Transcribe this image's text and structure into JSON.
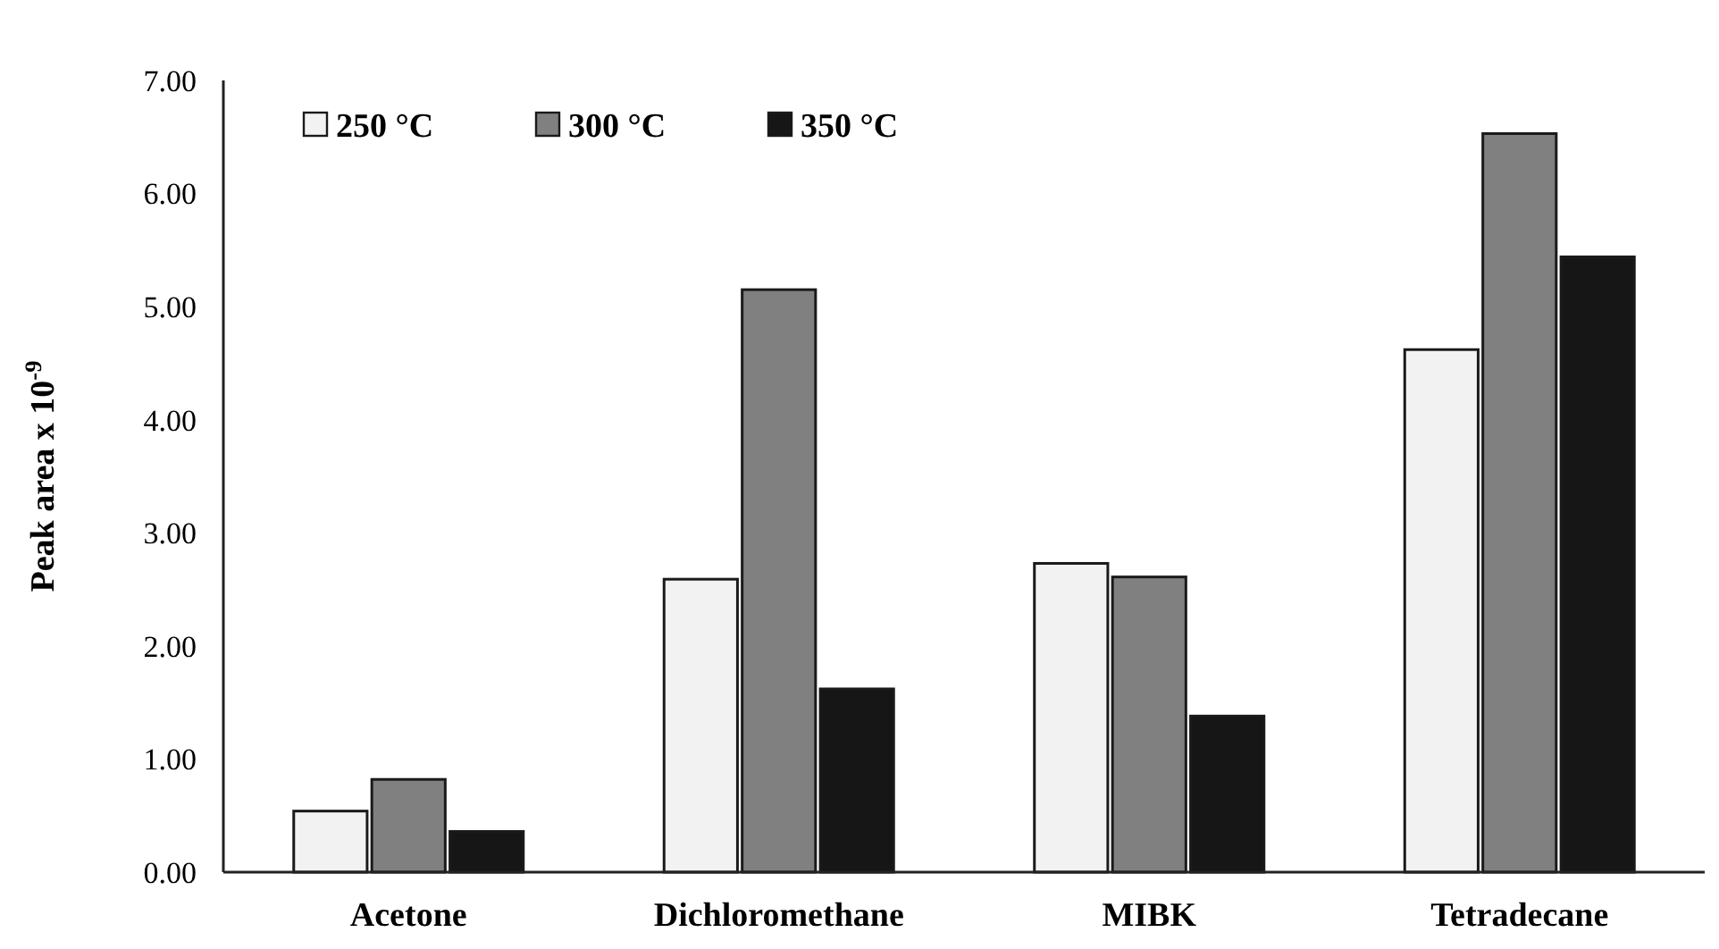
{
  "chart_data": {
    "type": "bar",
    "ylabel": "Peak area x 10$^{-9}$",
    "categories": [
      "Acetone",
      "Dichloromethane",
      "MIBK",
      "Tetradecane"
    ],
    "series": [
      {
        "name": "250 °C",
        "color": "#f2f2f2",
        "values": [
          0.54,
          2.59,
          2.73,
          4.62
        ]
      },
      {
        "name": "300 °C",
        "color": "#808080",
        "values": [
          0.82,
          5.15,
          2.61,
          6.53
        ]
      },
      {
        "name": "350 °C",
        "color": "#161616",
        "values": [
          0.36,
          1.62,
          1.38,
          5.44
        ]
      }
    ],
    "ylim": [
      0,
      7
    ],
    "yticks": [
      {
        "value": 0,
        "label": "0.00"
      },
      {
        "value": 1,
        "label": "1.00"
      },
      {
        "value": 2,
        "label": "2.00"
      },
      {
        "value": 3,
        "label": "3.00"
      },
      {
        "value": 4,
        "label": "4.00"
      },
      {
        "value": 5,
        "label": "5.00"
      },
      {
        "value": 6,
        "label": "6.00"
      },
      {
        "value": 7,
        "label": "7.00"
      }
    ],
    "grid": false,
    "legend": "top left"
  }
}
